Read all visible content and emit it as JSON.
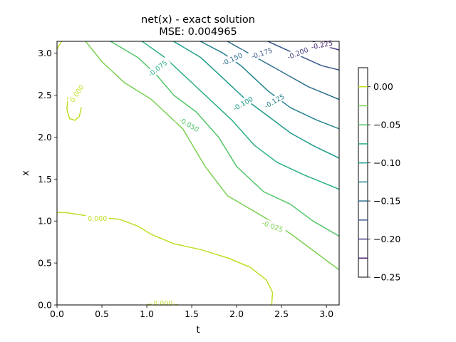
{
  "chart_data": {
    "type": "contour",
    "title": "net(x) - exact solution",
    "subtitle": "MSE: 0.004965",
    "xlabel": "t",
    "ylabel": "x",
    "xlim": [
      0,
      3.14159
    ],
    "ylim": [
      0,
      3.14159
    ],
    "xticks": [
      "0.0",
      "0.5",
      "1.0",
      "1.5",
      "2.0",
      "2.5",
      "3.0"
    ],
    "yticks": [
      "0.0",
      "0.5",
      "1.0",
      "1.5",
      "2.0",
      "2.5",
      "3.0"
    ],
    "grid": false,
    "colormap": "viridis",
    "colorbar": {
      "range": [
        -0.25,
        0.025
      ],
      "tick_values": [
        0.0,
        -0.05,
        -0.1,
        -0.15,
        -0.2,
        -0.25
      ],
      "tick_labels": [
        "0.00",
        "−0.05",
        "−0.10",
        "−0.15",
        "−0.20",
        "−0.25"
      ]
    },
    "levels": [
      {
        "value": 0.0,
        "label": "0.000",
        "color": "#bddf26",
        "paths": [
          [
            [
              0.0,
              3.05
            ],
            [
              0.05,
              3.14
            ]
          ],
          [
            [
              0.27,
              2.35
            ],
            [
              0.25,
              2.25
            ],
            [
              0.2,
              2.2
            ],
            [
              0.14,
              2.22
            ],
            [
              0.11,
              2.33
            ],
            [
              0.12,
              2.47
            ]
          ],
          [
            [
              0.0,
              1.1
            ],
            [
              0.1,
              1.1
            ],
            [
              0.4,
              1.05
            ],
            [
              0.7,
              1.02
            ],
            [
              0.9,
              0.94
            ],
            [
              1.05,
              0.84
            ],
            [
              1.3,
              0.73
            ],
            [
              1.6,
              0.66
            ],
            [
              1.9,
              0.56
            ],
            [
              2.15,
              0.45
            ],
            [
              2.33,
              0.3
            ],
            [
              2.4,
              0.15
            ],
            [
              2.39,
              0.0
            ]
          ],
          [
            [
              1.0,
              0.0
            ],
            [
              1.05,
              0.01
            ],
            [
              1.25,
              0.01
            ],
            [
              1.35,
              0.0
            ]
          ]
        ],
        "labels_at": [
          [
            0.22,
            2.52,
            -55
          ],
          [
            0.45,
            1.03,
            0
          ],
          [
            1.18,
            0.02,
            0
          ]
        ]
      },
      {
        "value": -0.025,
        "label": "-0.025",
        "color": "#7ad151",
        "paths": [
          [
            [
              0.32,
              3.14
            ],
            [
              0.5,
              2.9
            ],
            [
              0.75,
              2.65
            ],
            [
              1.05,
              2.45
            ],
            [
              1.4,
              2.1
            ],
            [
              1.65,
              1.65
            ],
            [
              1.9,
              1.3
            ],
            [
              2.3,
              1.05
            ],
            [
              2.6,
              0.85
            ],
            [
              2.85,
              0.65
            ],
            [
              3.14,
              0.42
            ]
          ]
        ],
        "labels_at": [
          [
            2.4,
            0.94,
            20
          ]
        ]
      },
      {
        "value": -0.05,
        "label": "-0.050",
        "color": "#52c569",
        "paths": [
          [
            [
              0.6,
              3.14
            ],
            [
              0.9,
              2.95
            ],
            [
              1.1,
              2.75
            ],
            [
              1.3,
              2.5
            ],
            [
              1.55,
              2.3
            ],
            [
              1.8,
              2.0
            ],
            [
              2.0,
              1.65
            ],
            [
              2.3,
              1.35
            ],
            [
              2.6,
              1.2
            ],
            [
              2.85,
              1.0
            ],
            [
              3.14,
              0.82
            ]
          ]
        ],
        "labels_at": [
          [
            1.47,
            2.15,
            30
          ]
        ]
      },
      {
        "value": -0.075,
        "label": "-0.075",
        "color": "#2ab07f",
        "paths": [
          [
            [
              0.95,
              3.14
            ],
            [
              1.2,
              2.95
            ],
            [
              1.45,
              2.7
            ],
            [
              1.65,
              2.5
            ],
            [
              1.95,
              2.2
            ],
            [
              2.2,
              1.9
            ],
            [
              2.45,
              1.7
            ],
            [
              2.75,
              1.55
            ],
            [
              3.14,
              1.38
            ]
          ]
        ],
        "labels_at": [
          [
            1.12,
            2.82,
            -38
          ]
        ]
      },
      {
        "value": -0.1,
        "label": "-0.100",
        "color": "#1e9b8a",
        "paths": [
          [
            [
              1.3,
              3.14
            ],
            [
              1.6,
              2.95
            ],
            [
              1.8,
              2.75
            ],
            [
              2.1,
              2.45
            ],
            [
              2.35,
              2.25
            ],
            [
              2.6,
              2.05
            ],
            [
              2.85,
              1.9
            ],
            [
              3.14,
              1.75
            ]
          ]
        ],
        "labels_at": [
          [
            2.07,
            2.4,
            -30
          ]
        ]
      },
      {
        "value": -0.125,
        "label": "-0.125",
        "color": "#25848e",
        "paths": [
          [
            [
              1.6,
              3.14
            ],
            [
              1.85,
              3.0
            ],
            [
              2.05,
              2.85
            ],
            [
              2.35,
              2.55
            ],
            [
              2.6,
              2.35
            ],
            [
              2.9,
              2.2
            ],
            [
              3.14,
              2.1
            ]
          ]
        ],
        "labels_at": [
          [
            2.42,
            2.43,
            -30
          ]
        ]
      },
      {
        "value": -0.15,
        "label": "-0.150",
        "color": "#2d708e",
        "paths": [
          [
            [
              1.9,
              3.14
            ],
            [
              2.3,
              2.9
            ],
            [
              2.55,
              2.75
            ],
            [
              2.8,
              2.6
            ],
            [
              3.14,
              2.45
            ]
          ]
        ],
        "labels_at": [
          [
            1.95,
            2.93,
            -25
          ]
        ]
      },
      {
        "value": -0.175,
        "label": "-0.175",
        "color": "#38588c",
        "paths": [
          [
            [
              2.35,
              3.14
            ],
            [
              2.7,
              2.97
            ],
            [
              2.95,
              2.85
            ],
            [
              3.14,
              2.8
            ]
          ]
        ],
        "labels_at": [
          [
            2.28,
            3.0,
            -18
          ]
        ]
      },
      {
        "value": -0.2,
        "label": "-0.200",
        "color": "#433e85",
        "paths": [
          [
            [
              2.85,
              3.14
            ],
            [
              3.0,
              3.08
            ],
            [
              3.14,
              3.04
            ]
          ]
        ],
        "labels_at": [
          [
            2.68,
            3.0,
            -22
          ]
        ]
      },
      {
        "value": -0.225,
        "label": "-0.225",
        "color": "#482173",
        "paths": [],
        "labels_at": [
          [
            2.95,
            3.1,
            -12
          ]
        ]
      }
    ]
  }
}
